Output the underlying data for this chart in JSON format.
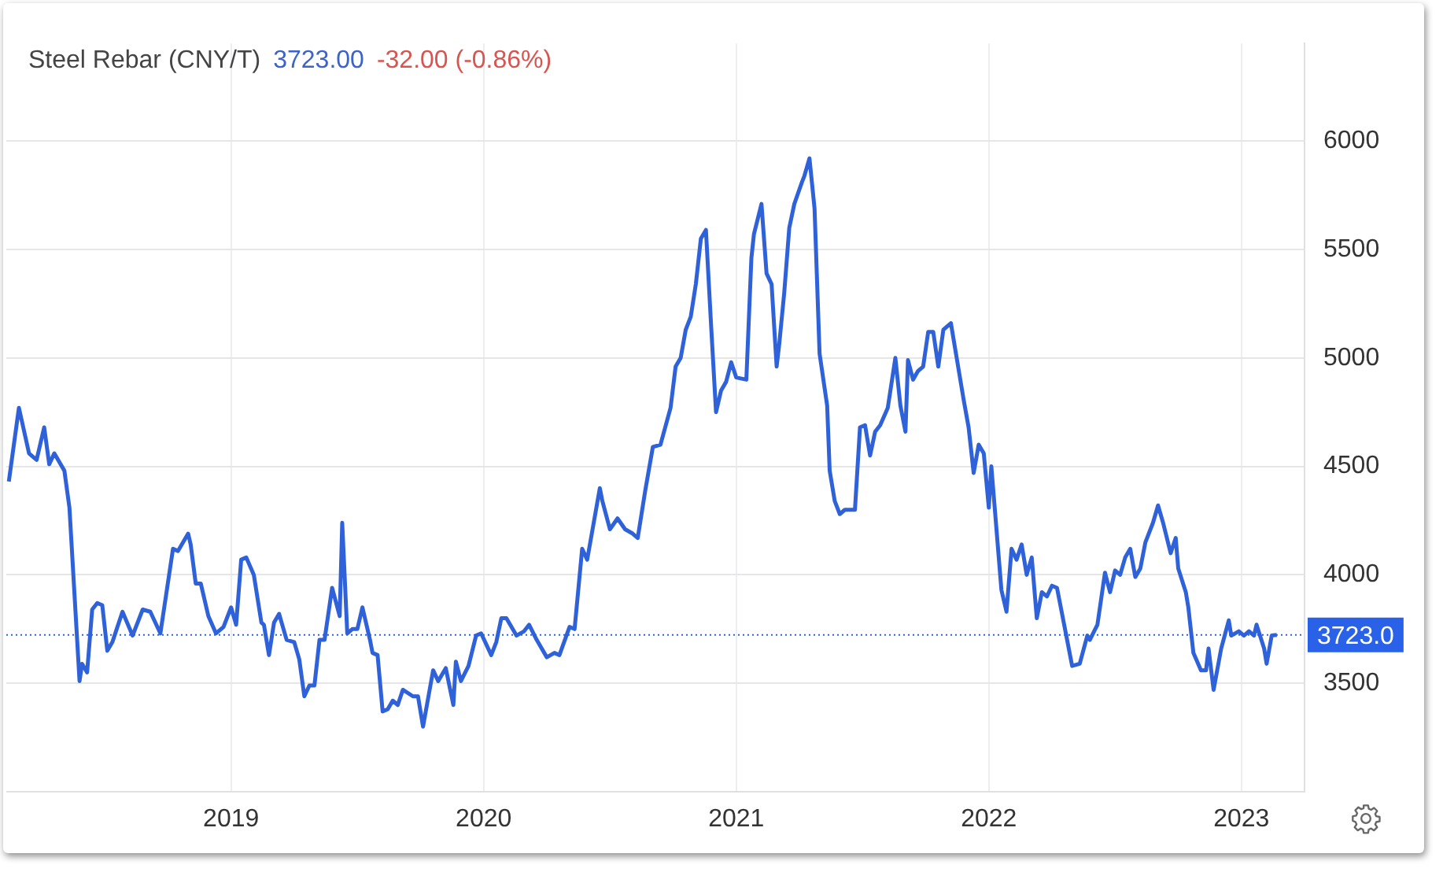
{
  "chart_data": {
    "type": "line",
    "title": "Steel Rebar (CNY/T)",
    "annotations": [
      "3723.00",
      "-32.00 (-0.86%)"
    ],
    "xlim": [
      2018.11,
      2023.25
    ],
    "xticks": [
      2019,
      2020,
      2021,
      2022,
      2023
    ],
    "ylim": [
      3000,
      6450
    ],
    "yticks": [
      3500,
      4000,
      4500,
      5000,
      5500,
      6000
    ],
    "grid": true,
    "legend": false,
    "marker": "none",
    "line_style": "solid",
    "ref_lines": [
      {
        "axis": "y",
        "value": 3723,
        "label": "3723.0",
        "color": "#2962e8",
        "line_style": "dotted"
      }
    ],
    "series": [
      {
        "color": "#2f62d9",
        "x": [
          2018.12,
          2018.16,
          2018.2,
          2018.23,
          2018.26,
          2018.28,
          2018.3,
          2018.34,
          2018.36,
          2018.4,
          2018.41,
          2018.43,
          2018.45,
          2018.47,
          2018.49,
          2018.51,
          2018.53,
          2018.57,
          2018.61,
          2018.65,
          2018.68,
          2018.72,
          2018.77,
          2018.79,
          2018.83,
          2018.84,
          2018.86,
          2018.88,
          2018.91,
          2018.94,
          2018.97,
          2019.0,
          2019.02,
          2019.04,
          2019.06,
          2019.09,
          2019.12,
          2019.13,
          2019.15,
          2019.17,
          2019.19,
          2019.22,
          2019.25,
          2019.27,
          2019.29,
          2019.31,
          2019.33,
          2019.35,
          2019.37,
          2019.4,
          2019.43,
          2019.44,
          2019.46,
          2019.48,
          2019.5,
          2019.52,
          2019.55,
          2019.56,
          2019.58,
          2019.6,
          2019.62,
          2019.64,
          2019.66,
          2019.68,
          2019.72,
          2019.74,
          2019.76,
          2019.8,
          2019.82,
          2019.85,
          2019.88,
          2019.89,
          2019.91,
          2019.94,
          2019.97,
          2019.99,
          2020.03,
          2020.05,
          2020.07,
          2020.09,
          2020.13,
          2020.16,
          2020.18,
          2020.21,
          2020.25,
          2020.28,
          2020.3,
          2020.34,
          2020.36,
          2020.39,
          2020.41,
          2020.46,
          2020.47,
          2020.5,
          2020.53,
          2020.56,
          2020.59,
          2020.61,
          2020.64,
          2020.67,
          2020.7,
          2020.74,
          2020.76,
          2020.78,
          2020.8,
          2020.82,
          2020.84,
          2020.86,
          2020.88,
          2020.9,
          2020.92,
          2020.94,
          2020.96,
          2020.98,
          2021.0,
          2021.04,
          2021.06,
          2021.07,
          2021.1,
          2021.12,
          2021.14,
          2021.16,
          2021.17,
          2021.19,
          2021.21,
          2021.23,
          2021.26,
          2021.27,
          2021.29,
          2021.31,
          2021.33,
          2021.36,
          2021.37,
          2021.39,
          2021.41,
          2021.43,
          2021.47,
          2021.49,
          2021.51,
          2021.53,
          2021.55,
          2021.57,
          2021.6,
          2021.63,
          2021.65,
          2021.67,
          2021.68,
          2021.7,
          2021.72,
          2021.74,
          2021.76,
          2021.78,
          2021.8,
          2021.82,
          2021.85,
          2021.87,
          2021.9,
          2021.92,
          2021.94,
          2021.96,
          2021.98,
          2022.0,
          2022.01,
          2022.05,
          2022.07,
          2022.09,
          2022.11,
          2022.13,
          2022.15,
          2022.17,
          2022.19,
          2022.21,
          2022.23,
          2022.25,
          2022.27,
          2022.3,
          2022.33,
          2022.36,
          2022.39,
          2022.4,
          2022.43,
          2022.46,
          2022.48,
          2022.5,
          2022.52,
          2022.54,
          2022.56,
          2022.58,
          2022.6,
          2022.62,
          2022.65,
          2022.67,
          2022.69,
          2022.72,
          2022.74,
          2022.75,
          2022.78,
          2022.79,
          2022.81,
          2022.84,
          2022.86,
          2022.87,
          2022.89,
          2022.92,
          2022.95,
          2022.96,
          2022.99,
          2023.01,
          2023.03,
          2023.05,
          2023.06,
          2023.09,
          2023.1,
          2023.12,
          2023.14
        ],
        "values": [
          4430,
          4770,
          4560,
          4530,
          4680,
          4510,
          4560,
          4480,
          4310,
          3510,
          3590,
          3550,
          3840,
          3870,
          3860,
          3650,
          3690,
          3830,
          3720,
          3840,
          3830,
          3730,
          4120,
          4110,
          4190,
          4140,
          3960,
          3960,
          3810,
          3730,
          3760,
          3850,
          3770,
          4070,
          4080,
          4000,
          3780,
          3770,
          3630,
          3780,
          3820,
          3700,
          3690,
          3610,
          3440,
          3490,
          3490,
          3700,
          3700,
          3940,
          3810,
          4240,
          3730,
          3750,
          3750,
          3850,
          3700,
          3640,
          3630,
          3370,
          3380,
          3420,
          3400,
          3470,
          3440,
          3440,
          3300,
          3560,
          3510,
          3570,
          3400,
          3600,
          3510,
          3580,
          3720,
          3730,
          3630,
          3690,
          3800,
          3800,
          3720,
          3740,
          3770,
          3700,
          3620,
          3640,
          3630,
          3760,
          3750,
          4120,
          4070,
          4400,
          4340,
          4210,
          4260,
          4210,
          4190,
          4170,
          4390,
          4590,
          4600,
          4770,
          4960,
          5000,
          5130,
          5190,
          5340,
          5550,
          5590,
          5160,
          4750,
          4850,
          4890,
          4980,
          4910,
          4900,
          5460,
          5570,
          5710,
          5390,
          5340,
          4960,
          5060,
          5300,
          5600,
          5710,
          5810,
          5840,
          5920,
          5690,
          5020,
          4780,
          4480,
          4340,
          4280,
          4300,
          4300,
          4680,
          4690,
          4550,
          4660,
          4690,
          4770,
          5000,
          4780,
          4660,
          4990,
          4900,
          4940,
          4960,
          5120,
          5120,
          4960,
          5130,
          5160,
          5020,
          4810,
          4680,
          4470,
          4600,
          4560,
          4310,
          4500,
          3930,
          3830,
          4120,
          4070,
          4140,
          4000,
          4080,
          3800,
          3920,
          3900,
          3950,
          3940,
          3760,
          3580,
          3590,
          3720,
          3700,
          3770,
          4010,
          3920,
          4020,
          4000,
          4080,
          4120,
          3990,
          4030,
          4150,
          4240,
          4320,
          4240,
          4100,
          4170,
          4030,
          3920,
          3850,
          3640,
          3560,
          3560,
          3660,
          3470,
          3660,
          3790,
          3720,
          3740,
          3720,
          3740,
          3720,
          3770,
          3660,
          3590,
          3720,
          3723
        ]
      }
    ]
  }
}
